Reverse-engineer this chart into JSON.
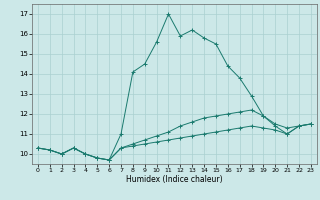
{
  "xlabel": "Humidex (Indice chaleur)",
  "bg_color": "#cce8e8",
  "grid_color": "#aad0d0",
  "line_color": "#1a7a6e",
  "xlim": [
    -0.5,
    23.5
  ],
  "ylim": [
    9.5,
    17.5
  ],
  "yticks": [
    10,
    11,
    12,
    13,
    14,
    15,
    16,
    17
  ],
  "xticks": [
    0,
    1,
    2,
    3,
    4,
    5,
    6,
    7,
    8,
    9,
    10,
    11,
    12,
    13,
    14,
    15,
    16,
    17,
    18,
    19,
    20,
    21,
    22,
    23
  ],
  "series": [
    [
      10.3,
      10.2,
      10.0,
      10.3,
      10.0,
      9.8,
      9.7,
      11.0,
      14.1,
      14.5,
      15.6,
      17.0,
      15.9,
      16.2,
      15.8,
      15.5,
      14.4,
      13.8,
      12.9,
      11.9,
      11.4,
      11.0,
      11.4,
      11.5
    ],
    [
      10.3,
      10.2,
      10.0,
      10.3,
      10.0,
      9.8,
      9.7,
      10.3,
      10.5,
      10.7,
      10.9,
      11.1,
      11.4,
      11.6,
      11.8,
      11.9,
      12.0,
      12.1,
      12.2,
      11.9,
      11.5,
      11.3,
      11.4,
      11.5
    ],
    [
      10.3,
      10.2,
      10.0,
      10.3,
      10.0,
      9.8,
      9.7,
      10.3,
      10.4,
      10.5,
      10.6,
      10.7,
      10.8,
      10.9,
      11.0,
      11.1,
      11.2,
      11.3,
      11.4,
      11.3,
      11.2,
      11.0,
      11.4,
      11.5
    ]
  ]
}
